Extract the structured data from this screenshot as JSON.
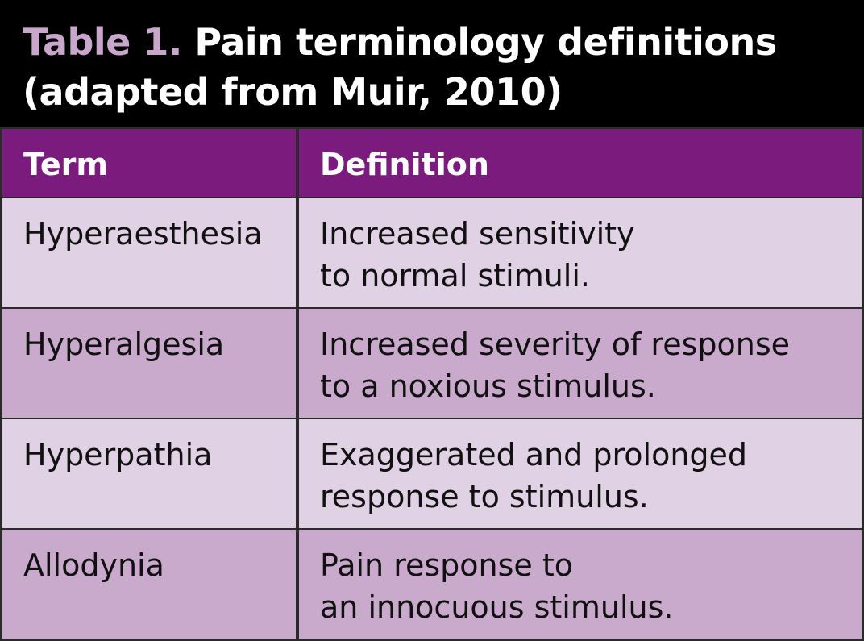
{
  "header": {
    "label": "Table 1.",
    "title_lines": [
      "Pain terminology definitions",
      "(adapted from Muir, 2010)"
    ]
  },
  "table": {
    "columns": [
      "Term",
      "Definition"
    ],
    "rows": [
      {
        "term": "Hyperaesthesia",
        "definition": [
          "Increased sensitivity",
          "to normal stimuli."
        ]
      },
      {
        "term": "Hyperalgesia",
        "definition": [
          "Increased severity of response",
          "to a noxious stimulus."
        ]
      },
      {
        "term": "Hyperpathia",
        "definition": [
          "Exaggerated and prolonged",
          "response to stimulus."
        ]
      },
      {
        "term": "Allodynia",
        "definition": [
          "Pain response to",
          "an innocuous stimulus."
        ]
      }
    ]
  }
}
